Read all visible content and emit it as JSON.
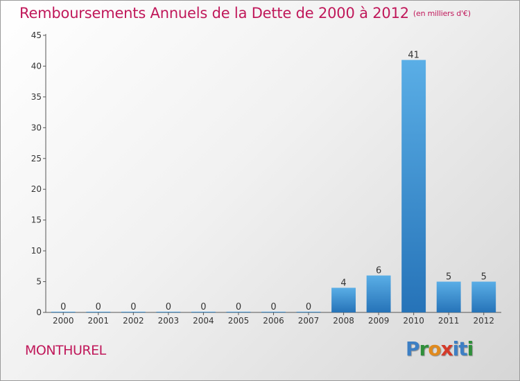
{
  "header": {
    "title": "Remboursements Annuels de la Dette de 2000 à 2012",
    "unit": "(en milliers d'€)"
  },
  "commune": "MONTHUREL",
  "logo": {
    "letters": [
      "P",
      "r",
      "o",
      "x",
      "i",
      "t",
      "i"
    ],
    "colors": [
      "#3d7fc4",
      "#2f8f3a",
      "#e08a1e",
      "#d43a2a",
      "#3d7fc4",
      "#3d7fc4",
      "#2f8f3a"
    ]
  },
  "colors": {
    "title": "#c0185a",
    "bar_light": "#5aaee6",
    "bar_dark": "#2673b8"
  },
  "chart_data": {
    "type": "bar",
    "title": "Remboursements Annuels de la Dette de 2000 à 2012",
    "categories": [
      "2000",
      "2001",
      "2002",
      "2003",
      "2004",
      "2005",
      "2006",
      "2007",
      "2008",
      "2009",
      "2010",
      "2011",
      "2012"
    ],
    "values": [
      0,
      0,
      0,
      0,
      0,
      0,
      0,
      0,
      4,
      6,
      41,
      5,
      5
    ],
    "ylim": [
      0,
      45
    ],
    "yticks": [
      0,
      5,
      10,
      15,
      20,
      25,
      30,
      35,
      40,
      45
    ],
    "grid": false,
    "data_labels": true
  }
}
